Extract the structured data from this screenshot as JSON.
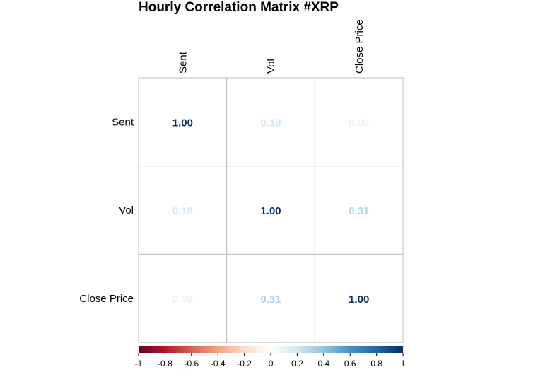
{
  "chart_data": {
    "type": "heatmap",
    "title": "Hourly Correlation Matrix #XRP",
    "variables": [
      "Sent",
      "Vol",
      "Close Price"
    ],
    "matrix": [
      [
        1.0,
        0.18,
        0.09
      ],
      [
        0.18,
        1.0,
        0.31
      ],
      [
        0.09,
        0.31,
        1.0
      ]
    ],
    "value_labels": [
      [
        "1.00",
        "0.18",
        "0.09"
      ],
      [
        "0.18",
        "1.00",
        "0.31"
      ],
      [
        "0.09",
        "0.31",
        "1.00"
      ]
    ],
    "colorbar": {
      "range": [
        -1,
        1
      ],
      "ticks": [
        "-1",
        "-0.8",
        "-0.6",
        "-0.4",
        "-0.2",
        "0",
        "0.2",
        "0.4",
        "0.6",
        "0.8",
        "1"
      ],
      "colors": [
        "#67001F",
        "#B2182B",
        "#D6604D",
        "#F4A582",
        "#FDDBC7",
        "#FFFFFF",
        "#D1E5F0",
        "#92C5DE",
        "#4393C3",
        "#2166AC",
        "#053061"
      ]
    },
    "legend_position": "bottom",
    "grid": true
  }
}
